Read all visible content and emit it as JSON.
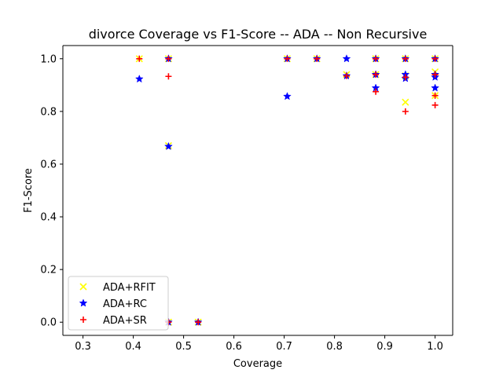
{
  "chart_data": {
    "type": "scatter",
    "title": "divorce Coverage vs F1-Score -- ADA -- Non Recursive",
    "xlabel": "Coverage",
    "ylabel": "F1-Score",
    "xlim": [
      0.26,
      1.035
    ],
    "ylim": [
      -0.05,
      1.05
    ],
    "xticks": [
      "0.3",
      "0.4",
      "0.5",
      "0.6",
      "0.7",
      "0.8",
      "0.9",
      "1.0"
    ],
    "xtick_values": [
      0.3,
      0.4,
      0.5,
      0.6,
      0.7,
      0.8,
      0.9,
      1.0
    ],
    "yticks": [
      "0.0",
      "0.2",
      "0.4",
      "0.6",
      "0.8",
      "1.0"
    ],
    "ytick_values": [
      0.0,
      0.2,
      0.4,
      0.6,
      0.8,
      1.0
    ],
    "grid": false,
    "legend_position": "lower-left",
    "series": [
      {
        "name": "ADA+RFIT",
        "marker": "x",
        "color": "#ffff00",
        "points": [
          [
            0.412,
            1.0
          ],
          [
            0.47,
            1.0
          ],
          [
            0.47,
            0.67
          ],
          [
            0.47,
            0.0
          ],
          [
            0.529,
            0.0
          ],
          [
            0.706,
            1.0
          ],
          [
            0.765,
            1.0
          ],
          [
            0.824,
            0.94
          ],
          [
            0.882,
            1.0
          ],
          [
            0.882,
            0.94
          ],
          [
            0.941,
            1.0
          ],
          [
            0.941,
            0.935
          ],
          [
            0.941,
            0.835
          ],
          [
            1.0,
            1.0
          ],
          [
            1.0,
            0.95
          ],
          [
            1.0,
            0.86
          ]
        ]
      },
      {
        "name": "ADA+RC",
        "marker": "star",
        "color": "#0000ff",
        "points": [
          [
            0.412,
            0.923
          ],
          [
            0.47,
            1.0
          ],
          [
            0.47,
            0.667
          ],
          [
            0.47,
            0.0
          ],
          [
            0.529,
            0.0
          ],
          [
            0.706,
            1.0
          ],
          [
            0.706,
            0.857
          ],
          [
            0.765,
            1.0
          ],
          [
            0.824,
            1.0
          ],
          [
            0.824,
            0.935
          ],
          [
            0.882,
            1.0
          ],
          [
            0.882,
            0.94
          ],
          [
            0.882,
            0.889
          ],
          [
            0.941,
            1.0
          ],
          [
            0.941,
            0.94
          ],
          [
            0.941,
            0.925
          ],
          [
            1.0,
            1.0
          ],
          [
            1.0,
            0.94
          ],
          [
            1.0,
            0.93
          ],
          [
            1.0,
            0.889
          ]
        ]
      },
      {
        "name": "ADA+SR",
        "marker": "plus",
        "color": "#ff0000",
        "points": [
          [
            0.412,
            1.0
          ],
          [
            0.47,
            1.0
          ],
          [
            0.47,
            0.933
          ],
          [
            0.47,
            0.0
          ],
          [
            0.529,
            0.0
          ],
          [
            0.706,
            1.0
          ],
          [
            0.765,
            1.0
          ],
          [
            0.824,
            0.935
          ],
          [
            0.882,
            1.0
          ],
          [
            0.882,
            0.94
          ],
          [
            0.882,
            0.875
          ],
          [
            0.941,
            1.0
          ],
          [
            0.941,
            0.93
          ],
          [
            0.941,
            0.8
          ],
          [
            1.0,
            1.0
          ],
          [
            1.0,
            0.94
          ],
          [
            1.0,
            0.86
          ],
          [
            1.0,
            0.824
          ]
        ]
      }
    ]
  }
}
